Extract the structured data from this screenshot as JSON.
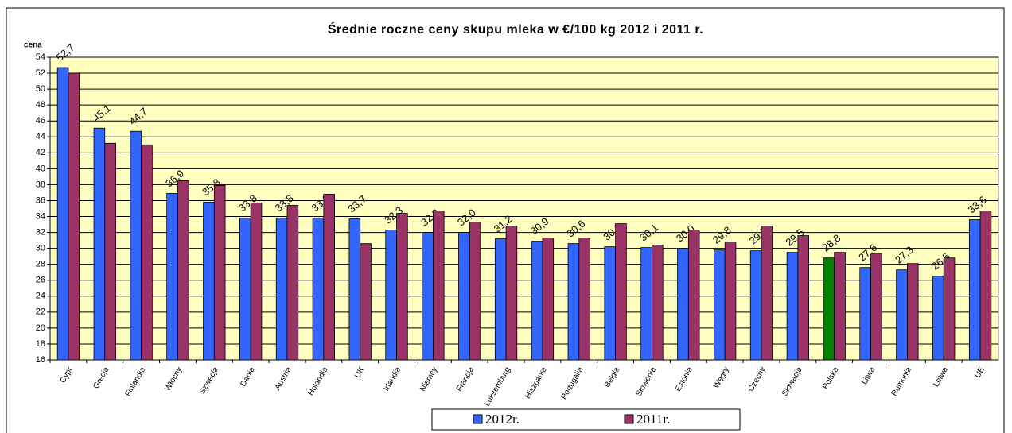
{
  "chart_data": {
    "type": "bar",
    "title": "Średnie roczne ceny skupu mleka w €/100 kg  2012 i 2011 r.",
    "y_label": "cena",
    "categories": [
      "Cypr",
      "Grecja",
      "Finlandia",
      "Włochy",
      "Szwecja",
      "Dania",
      "Austria",
      "Holandia",
      "UK",
      "Irlandia",
      "Niemcy",
      "Francja",
      "Luksemburg",
      "Hiszpania",
      "Portugalia",
      "Belgia",
      "Słowenia",
      "Estonia",
      "Węgry",
      "Czechy",
      "Słowacja",
      "Polska",
      "Litwa",
      "Rumunia",
      "Łotwa",
      "UE"
    ],
    "series": [
      {
        "name": "2012r.",
        "color": "#3366ff",
        "colors": [
          "#3366ff",
          "#3366ff",
          "#3366ff",
          "#3366ff",
          "#3366ff",
          "#3366ff",
          "#3366ff",
          "#3366ff",
          "#3366ff",
          "#3366ff",
          "#3366ff",
          "#3366ff",
          "#3366ff",
          "#3366ff",
          "#3366ff",
          "#3366ff",
          "#3366ff",
          "#3366ff",
          "#3366ff",
          "#3366ff",
          "#3366ff",
          "#008000",
          "#3366ff",
          "#3366ff",
          "#3366ff",
          "#3366ff"
        ],
        "values": [
          52.7,
          45.1,
          44.7,
          36.9,
          35.8,
          33.8,
          33.8,
          33.8,
          33.7,
          32.3,
          32.0,
          32.0,
          31.2,
          30.9,
          30.6,
          30.2,
          30.1,
          30.0,
          29.8,
          29.7,
          29.5,
          28.8,
          27.6,
          27.3,
          26.5,
          33.6
        ],
        "value_labels": [
          "52,7",
          "45,1",
          "44,7",
          "36,9",
          "35,8",
          "33,8",
          "33,8",
          "33,8",
          "33,7",
          "32,3",
          "32,0",
          "32,0",
          "31,2",
          "30,9",
          "30,6",
          "30,2",
          "30,1",
          "30,0",
          "29,8",
          "29,7",
          "29,5",
          "28,8",
          "27,6",
          "27,3",
          "26,5",
          "33,6"
        ]
      },
      {
        "name": "2011r.",
        "color": "#993366",
        "values": [
          52.0,
          43.2,
          43.0,
          38.5,
          37.9,
          35.7,
          35.4,
          36.8,
          30.6,
          34.4,
          34.7,
          33.3,
          32.8,
          31.3,
          31.3,
          33.1,
          30.4,
          32.3,
          30.8,
          32.8,
          31.6,
          29.5,
          29.3,
          28.1,
          28.8,
          34.7
        ]
      }
    ],
    "ylim": [
      16,
      54
    ],
    "yticks": [
      16,
      18,
      20,
      22,
      24,
      26,
      28,
      30,
      32,
      34,
      36,
      38,
      40,
      42,
      44,
      46,
      48,
      50,
      52,
      54
    ],
    "grid": true,
    "legend": "bottom",
    "plot_background": "#ffffc0"
  }
}
